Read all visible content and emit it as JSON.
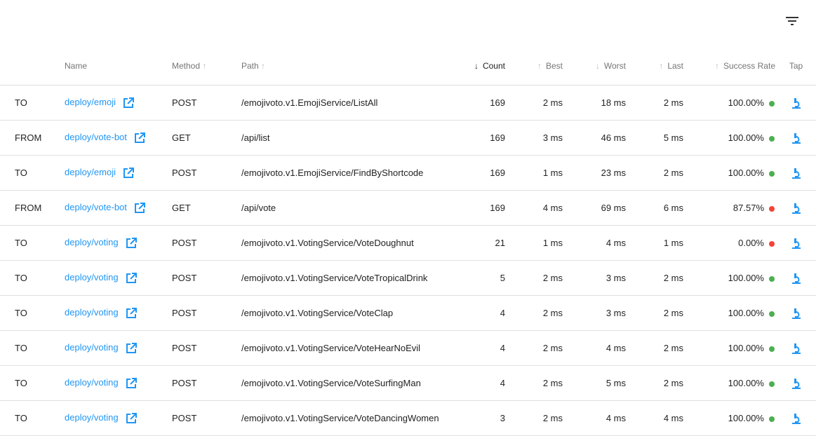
{
  "toolbar": {
    "filter_icon": "filter-list-icon"
  },
  "columns": {
    "name": "Name",
    "method": "Method",
    "path": "Path",
    "count": "Count",
    "best": "Best",
    "worst": "Worst",
    "last": "Last",
    "success_rate": "Success Rate",
    "tap": "Tap"
  },
  "sort": {
    "active": "Count",
    "direction": "descending"
  },
  "colors": {
    "link": "#2196f3",
    "success": "#4caf50",
    "failure": "#f44336"
  },
  "rows": [
    {
      "direction": "TO",
      "name": "deploy/emoji",
      "method": "POST",
      "path": "/emojivoto.v1.EmojiService/ListAll",
      "count": "169",
      "best": "2 ms",
      "worst": "18 ms",
      "last": "2 ms",
      "success_rate": "100.00%",
      "status": "good"
    },
    {
      "direction": "FROM",
      "name": "deploy/vote-bot",
      "method": "GET",
      "path": "/api/list",
      "count": "169",
      "best": "3 ms",
      "worst": "46 ms",
      "last": "5 ms",
      "success_rate": "100.00%",
      "status": "good"
    },
    {
      "direction": "TO",
      "name": "deploy/emoji",
      "method": "POST",
      "path": "/emojivoto.v1.EmojiService/FindByShortcode",
      "count": "169",
      "best": "1 ms",
      "worst": "23 ms",
      "last": "2 ms",
      "success_rate": "100.00%",
      "status": "good"
    },
    {
      "direction": "FROM",
      "name": "deploy/vote-bot",
      "method": "GET",
      "path": "/api/vote",
      "count": "169",
      "best": "4 ms",
      "worst": "69 ms",
      "last": "6 ms",
      "success_rate": "87.57%",
      "status": "bad"
    },
    {
      "direction": "TO",
      "name": "deploy/voting",
      "method": "POST",
      "path": "/emojivoto.v1.VotingService/VoteDoughnut",
      "count": "21",
      "best": "1 ms",
      "worst": "4 ms",
      "last": "1 ms",
      "success_rate": "0.00%",
      "status": "bad"
    },
    {
      "direction": "TO",
      "name": "deploy/voting",
      "method": "POST",
      "path": "/emojivoto.v1.VotingService/VoteTropicalDrink",
      "count": "5",
      "best": "2 ms",
      "worst": "3 ms",
      "last": "2 ms",
      "success_rate": "100.00%",
      "status": "good"
    },
    {
      "direction": "TO",
      "name": "deploy/voting",
      "method": "POST",
      "path": "/emojivoto.v1.VotingService/VoteClap",
      "count": "4",
      "best": "2 ms",
      "worst": "3 ms",
      "last": "2 ms",
      "success_rate": "100.00%",
      "status": "good"
    },
    {
      "direction": "TO",
      "name": "deploy/voting",
      "method": "POST",
      "path": "/emojivoto.v1.VotingService/VoteHearNoEvil",
      "count": "4",
      "best": "2 ms",
      "worst": "4 ms",
      "last": "2 ms",
      "success_rate": "100.00%",
      "status": "good"
    },
    {
      "direction": "TO",
      "name": "deploy/voting",
      "method": "POST",
      "path": "/emojivoto.v1.VotingService/VoteSurfingMan",
      "count": "4",
      "best": "2 ms",
      "worst": "5 ms",
      "last": "2 ms",
      "success_rate": "100.00%",
      "status": "good"
    },
    {
      "direction": "TO",
      "name": "deploy/voting",
      "method": "POST",
      "path": "/emojivoto.v1.VotingService/VoteDancingWomen",
      "count": "3",
      "best": "2 ms",
      "worst": "4 ms",
      "last": "4 ms",
      "success_rate": "100.00%",
      "status": "good"
    }
  ]
}
